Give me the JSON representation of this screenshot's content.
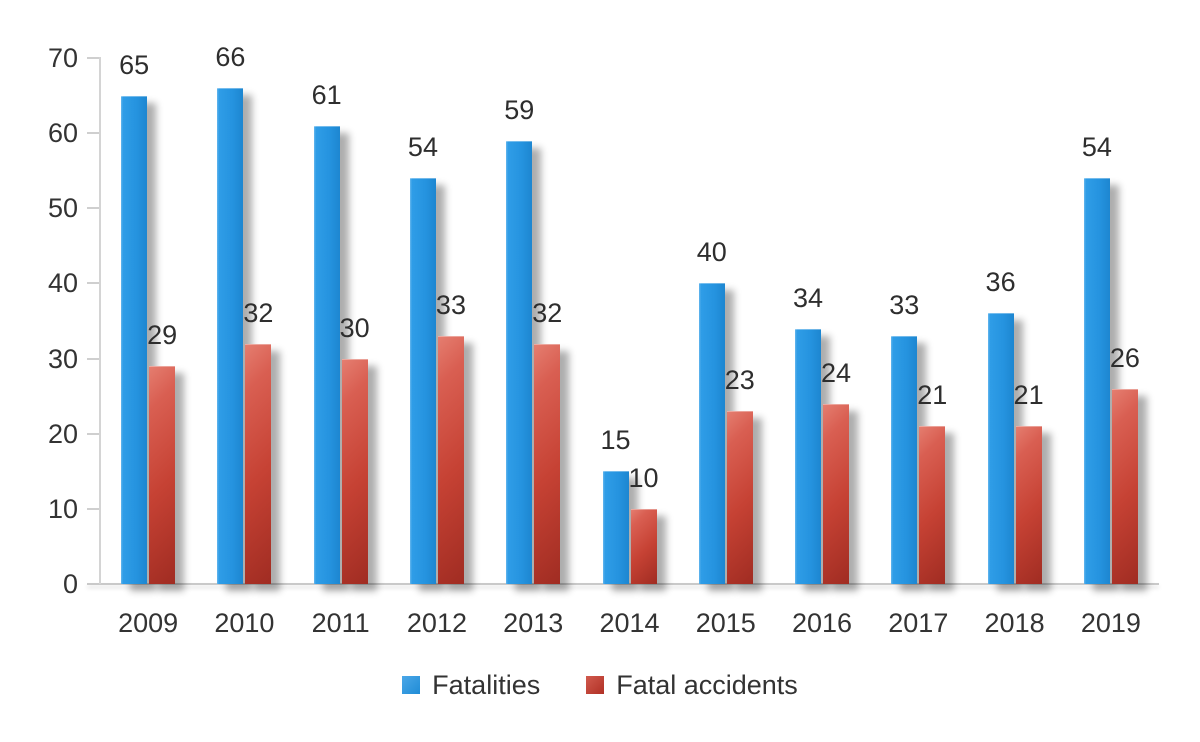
{
  "chart_data": {
    "type": "bar",
    "title": "",
    "xlabel": "",
    "ylabel": "",
    "categories": [
      "2009",
      "2010",
      "2011",
      "2012",
      "2013",
      "2014",
      "2015",
      "2016",
      "2017",
      "2018",
      "2019"
    ],
    "series": [
      {
        "name": "Fatalities",
        "color": "#2593DF",
        "values": [
          65,
          66,
          61,
          54,
          59,
          15,
          40,
          34,
          33,
          36,
          54
        ]
      },
      {
        "name": "Fatal accidents",
        "color": "#C23B2E",
        "values": [
          29,
          32,
          30,
          33,
          32,
          10,
          23,
          24,
          21,
          21,
          26
        ]
      }
    ],
    "ylim": [
      0,
      70
    ],
    "yticks": [
      0,
      10,
      20,
      30,
      40,
      50,
      60,
      70
    ],
    "grid": false,
    "show_value_labels": true,
    "legend_position": "bottom",
    "style": {
      "background": "#FFFFFF",
      "axis_color": "#D4D4D4",
      "tick_color": "#CFCFCF",
      "text_color": "#333333",
      "value_label_color": "#2E2E2E",
      "bar_shadow": true
    }
  }
}
